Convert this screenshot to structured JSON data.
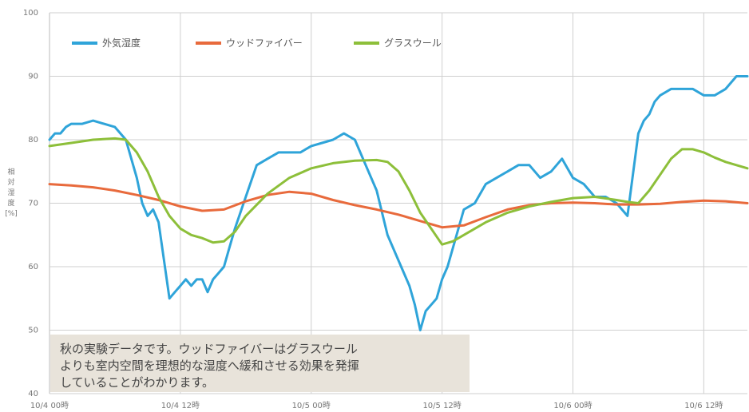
{
  "chart_data": {
    "type": "line",
    "title": "",
    "xlabel": "",
    "ylabel": "相対湿度 [%]",
    "ylabel_lines": [
      "相",
      "対",
      "湿",
      "度",
      "[%]"
    ],
    "ylim": [
      40,
      100
    ],
    "yticks": [
      40,
      50,
      60,
      70,
      80,
      90,
      100
    ],
    "xlim": [
      0,
      64
    ],
    "x_unit": "hours since 10/4 00時",
    "xticks": [
      {
        "x": 0,
        "label": "10/4 00時"
      },
      {
        "x": 12,
        "label": "10/4 12時"
      },
      {
        "x": 24,
        "label": "10/5 00時"
      },
      {
        "x": 36,
        "label": "10/5 12時"
      },
      {
        "x": 48,
        "label": "10/6 00時"
      },
      {
        "x": 60,
        "label": "10/6 12時"
      }
    ],
    "grid": true,
    "legend_position": "top-left",
    "series": [
      {
        "name": "外気湿度",
        "color": "#2fa4d9",
        "x": [
          0,
          0.5,
          1,
          1.5,
          2,
          3,
          4,
          5,
          6,
          7,
          8,
          8.5,
          9,
          9.5,
          10,
          10.5,
          11,
          11.5,
          12,
          12.5,
          13,
          13.5,
          14,
          14.5,
          15,
          15.5,
          16,
          16.5,
          17,
          18,
          19,
          20,
          21,
          22,
          23,
          24,
          25,
          26,
          27,
          28,
          29,
          30,
          31,
          32,
          33,
          33.5,
          34,
          34.5,
          35,
          35.5,
          36,
          36.5,
          37,
          38,
          39,
          40,
          41,
          42,
          43,
          44,
          45,
          46,
          47,
          48,
          49,
          50,
          51,
          52,
          53,
          54,
          54.5,
          55,
          55.5,
          56,
          57,
          58,
          59,
          60,
          61,
          62,
          63,
          64
        ],
        "values": [
          80,
          81,
          81,
          82,
          82.5,
          82.5,
          83,
          82.5,
          82,
          80,
          74,
          70,
          68,
          69,
          67,
          61,
          55,
          56,
          57,
          58,
          57,
          58,
          58,
          56,
          58,
          59,
          60,
          63,
          66,
          71,
          76,
          77,
          78,
          78,
          78,
          79,
          79.5,
          80,
          81,
          80,
          76,
          72,
          65,
          61,
          57,
          54,
          50,
          53,
          54,
          55,
          58,
          60,
          63,
          69,
          70,
          73,
          74,
          75,
          76,
          76,
          74,
          75,
          77,
          74,
          73,
          71,
          71,
          70,
          68,
          81,
          83,
          84,
          86,
          87,
          88,
          88,
          88,
          87,
          87,
          88,
          90,
          90
        ]
      },
      {
        "name": "ウッドファイバー",
        "color": "#e86a3c",
        "x": [
          0,
          2,
          4,
          6,
          8,
          10,
          12,
          14,
          16,
          18,
          20,
          22,
          24,
          26,
          28,
          30,
          32,
          34,
          36,
          38,
          40,
          42,
          44,
          46,
          48,
          50,
          52,
          54,
          56,
          58,
          60,
          62,
          64
        ],
        "values": [
          73,
          72.8,
          72.5,
          72,
          71.3,
          70.5,
          69.5,
          68.8,
          69,
          70.3,
          71.3,
          71.8,
          71.5,
          70.5,
          69.7,
          69,
          68.2,
          67.2,
          66.2,
          66.5,
          67.8,
          69,
          69.7,
          70,
          70.1,
          70,
          69.8,
          69.8,
          69.9,
          70.2,
          70.4,
          70.3,
          70
        ]
      },
      {
        "name": "グラスウール",
        "color": "#8dbf3a",
        "x": [
          0,
          2,
          4,
          6,
          7,
          8,
          9,
          10,
          11,
          12,
          13,
          14,
          15,
          16,
          17,
          18,
          20,
          22,
          24,
          26,
          28,
          30,
          31,
          32,
          33,
          34,
          35,
          36,
          37,
          38,
          40,
          42,
          44,
          46,
          48,
          50,
          52,
          53,
          54,
          55,
          56,
          57,
          58,
          59,
          60,
          61,
          62,
          63,
          64
        ],
        "values": [
          79,
          79.5,
          80,
          80.2,
          80,
          78,
          75,
          71,
          68,
          66,
          65,
          64.5,
          63.8,
          64,
          65.5,
          68,
          71.5,
          74,
          75.5,
          76.3,
          76.7,
          76.8,
          76.5,
          75,
          72,
          68.5,
          66,
          63.5,
          64,
          65,
          67,
          68.5,
          69.5,
          70.2,
          70.8,
          71,
          70.5,
          70.2,
          70,
          72,
          74.5,
          77,
          78.5,
          78.5,
          78,
          77.2,
          76.5,
          76,
          75.5
        ]
      }
    ]
  },
  "note": {
    "lines": [
      "秋の実験データです。ウッドファイバーはグラスウール",
      "よりも室内空間を理想的な湿度へ緩和させる効果を発揮",
      "していることがわかります。"
    ]
  }
}
